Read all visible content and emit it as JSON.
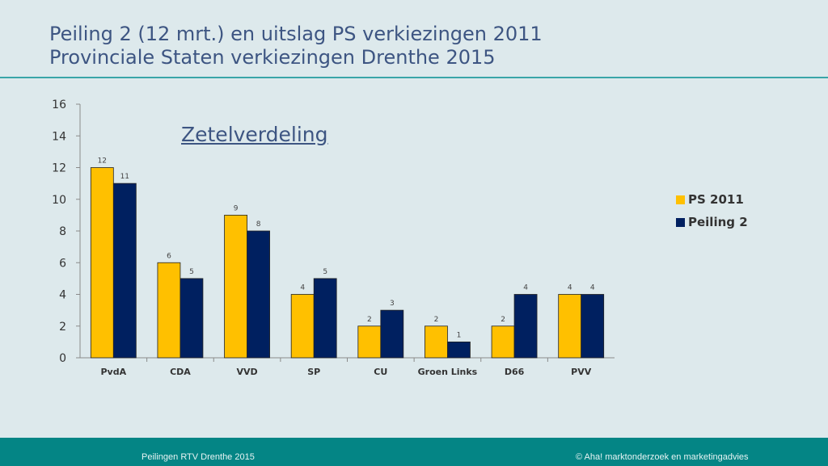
{
  "slide": {
    "title_line1": "Peiling 2 (12 mrt.) en uitslag PS verkiezingen 2011",
    "title_line2": "Provinciale Staten verkiezingen Drenthe 2015",
    "footer_left": "Peilingen RTV Drenthe 2015",
    "footer_right": "© Aha! marktonderzoek en marketingadvies"
  },
  "colors": {
    "background": "#dde9ec",
    "series1": "#ffc000",
    "series2": "#002060",
    "title": "#3d5582",
    "accent": "#048585"
  },
  "chart_data": {
    "type": "bar",
    "title": "Zetelverdeling",
    "categories": [
      "PvdA",
      "CDA",
      "VVD",
      "SP",
      "CU",
      "Groen Links",
      "D66",
      "PVV"
    ],
    "series": [
      {
        "name": "PS 2011",
        "values": [
          12,
          6,
          9,
          4,
          2,
          2,
          2,
          4
        ]
      },
      {
        "name": "Peiling 2",
        "values": [
          11,
          5,
          8,
          5,
          3,
          1,
          4,
          4
        ]
      }
    ],
    "ylim": [
      0,
      16
    ],
    "yticks": [
      0,
      2,
      4,
      6,
      8,
      10,
      12,
      14,
      16
    ],
    "grid": false,
    "legend_position": "right",
    "data_labels": true
  }
}
